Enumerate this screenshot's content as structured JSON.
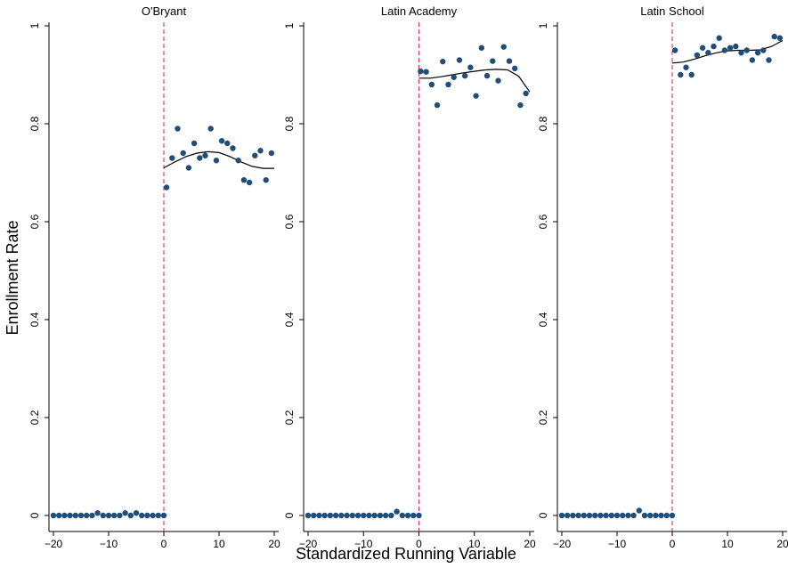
{
  "chart_data": {
    "type": "scatter",
    "ylabel": "Enrollment Rate",
    "xlabel": "Standardized Running Variable",
    "xlim": [
      -20,
      20
    ],
    "ylim": [
      0,
      1
    ],
    "xticks": [
      -20,
      -10,
      0,
      10,
      20
    ],
    "yticks": [
      0,
      0.2,
      0.4,
      0.6,
      0.8,
      1
    ],
    "ytick_labels": [
      "0",
      "0.2",
      "0.4",
      "0.6",
      "0.8",
      "1"
    ],
    "xtick_labels": [
      "−20",
      "−10",
      "0",
      "10",
      "20"
    ],
    "cutoff": 0,
    "colors": {
      "points": "#1f4e79",
      "cutoff": "#d6255b",
      "fit": "#000000"
    },
    "panels": [
      {
        "title": "O'Bryant",
        "points": [
          [
            -20,
            0
          ],
          [
            -19,
            0
          ],
          [
            -18,
            0
          ],
          [
            -17,
            0
          ],
          [
            -16,
            0
          ],
          [
            -15,
            0
          ],
          [
            -14,
            0
          ],
          [
            -13,
            0
          ],
          [
            -12,
            0.005
          ],
          [
            -11,
            0
          ],
          [
            -10,
            0
          ],
          [
            -9,
            0
          ],
          [
            -8,
            0
          ],
          [
            -7,
            0.005
          ],
          [
            -6,
            0
          ],
          [
            -5,
            0.005
          ],
          [
            -4,
            0
          ],
          [
            -3,
            0
          ],
          [
            -2,
            0
          ],
          [
            -1,
            0
          ],
          [
            0,
            0
          ],
          [
            0.5,
            0.67
          ],
          [
            1.5,
            0.73
          ],
          [
            2.5,
            0.79
          ],
          [
            3.5,
            0.74
          ],
          [
            4.5,
            0.71
          ],
          [
            5.5,
            0.76
          ],
          [
            6.5,
            0.73
          ],
          [
            7.5,
            0.735
          ],
          [
            8.5,
            0.79
          ],
          [
            9.5,
            0.725
          ],
          [
            10.5,
            0.765
          ],
          [
            11.5,
            0.76
          ],
          [
            12.5,
            0.75
          ],
          [
            13.5,
            0.725
          ],
          [
            14.5,
            0.685
          ],
          [
            15.5,
            0.68
          ],
          [
            16.5,
            0.735
          ],
          [
            17.5,
            0.745
          ],
          [
            18.5,
            0.685
          ],
          [
            19.5,
            0.74
          ]
        ],
        "fit": [
          [
            0,
            0.71
          ],
          [
            2,
            0.722
          ],
          [
            4,
            0.733
          ],
          [
            6,
            0.74
          ],
          [
            8,
            0.743
          ],
          [
            10,
            0.741
          ],
          [
            12,
            0.733
          ],
          [
            14,
            0.722
          ],
          [
            16,
            0.713
          ],
          [
            18,
            0.709
          ],
          [
            20,
            0.709
          ]
        ]
      },
      {
        "title": "Latin Academy",
        "points": [
          [
            -20,
            0
          ],
          [
            -19,
            0
          ],
          [
            -18,
            0
          ],
          [
            -17,
            0
          ],
          [
            -16,
            0
          ],
          [
            -15,
            0
          ],
          [
            -14,
            0
          ],
          [
            -13,
            0
          ],
          [
            -12,
            0
          ],
          [
            -11,
            0
          ],
          [
            -10,
            0
          ],
          [
            -9,
            0
          ],
          [
            -8,
            0
          ],
          [
            -7,
            0
          ],
          [
            -6,
            0
          ],
          [
            -5,
            0
          ],
          [
            -4,
            0.008
          ],
          [
            -3,
            0
          ],
          [
            -2,
            0
          ],
          [
            -1,
            0
          ],
          [
            0,
            0
          ],
          [
            0.3,
            0.907
          ],
          [
            1.3,
            0.906
          ],
          [
            2.3,
            0.88
          ],
          [
            3.3,
            0.838
          ],
          [
            4.3,
            0.927
          ],
          [
            5.3,
            0.88
          ],
          [
            6.3,
            0.895
          ],
          [
            7.3,
            0.93
          ],
          [
            8.3,
            0.898
          ],
          [
            9.3,
            0.915
          ],
          [
            10.3,
            0.857
          ],
          [
            11.3,
            0.955
          ],
          [
            12.3,
            0.898
          ],
          [
            13.3,
            0.928
          ],
          [
            14.3,
            0.888
          ],
          [
            15.3,
            0.957
          ],
          [
            16.3,
            0.928
          ],
          [
            17.3,
            0.913
          ],
          [
            18.3,
            0.838
          ],
          [
            19.3,
            0.862
          ]
        ],
        "fit": [
          [
            0,
            0.893
          ],
          [
            2,
            0.893
          ],
          [
            4,
            0.896
          ],
          [
            6,
            0.9
          ],
          [
            8,
            0.904
          ],
          [
            10,
            0.907
          ],
          [
            12,
            0.91
          ],
          [
            14,
            0.911
          ],
          [
            16,
            0.91
          ],
          [
            18,
            0.897
          ],
          [
            20,
            0.865
          ]
        ]
      },
      {
        "title": "Latin School",
        "points": [
          [
            -20,
            0
          ],
          [
            -19,
            0
          ],
          [
            -18,
            0
          ],
          [
            -17,
            0
          ],
          [
            -16,
            0
          ],
          [
            -15,
            0
          ],
          [
            -14,
            0
          ],
          [
            -13,
            0
          ],
          [
            -12,
            0
          ],
          [
            -11,
            0
          ],
          [
            -10,
            0
          ],
          [
            -9,
            0
          ],
          [
            -8,
            0
          ],
          [
            -7,
            0
          ],
          [
            -6,
            0.01
          ],
          [
            -5,
            0
          ],
          [
            -4,
            0
          ],
          [
            -3,
            0
          ],
          [
            -2,
            0
          ],
          [
            -1,
            0
          ],
          [
            0,
            0
          ],
          [
            0.5,
            0.95
          ],
          [
            1.5,
            0.9
          ],
          [
            2.5,
            0.915
          ],
          [
            3.5,
            0.9
          ],
          [
            4.5,
            0.94
          ],
          [
            5.5,
            0.955
          ],
          [
            6.5,
            0.945
          ],
          [
            7.5,
            0.958
          ],
          [
            8.5,
            0.975
          ],
          [
            9.5,
            0.95
          ],
          [
            10.5,
            0.955
          ],
          [
            11.5,
            0.958
          ],
          [
            12.5,
            0.945
          ],
          [
            13.5,
            0.95
          ],
          [
            14.5,
            0.93
          ],
          [
            15.5,
            0.945
          ],
          [
            16.5,
            0.95
          ],
          [
            17.5,
            0.93
          ],
          [
            18.5,
            0.978
          ],
          [
            19.5,
            0.975
          ]
        ],
        "fit": [
          [
            0,
            0.924
          ],
          [
            2,
            0.926
          ],
          [
            4,
            0.932
          ],
          [
            6,
            0.939
          ],
          [
            8,
            0.945
          ],
          [
            10,
            0.949
          ],
          [
            12,
            0.95
          ],
          [
            14,
            0.95
          ],
          [
            16,
            0.951
          ],
          [
            18,
            0.958
          ],
          [
            20,
            0.97
          ]
        ]
      }
    ]
  }
}
